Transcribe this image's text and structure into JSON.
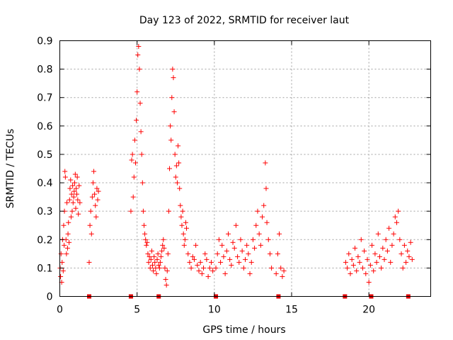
{
  "chart_data": {
    "type": "scatter",
    "title": "Day 123 of 2022, SRMTID for receiver laut",
    "xlabel": "GPS time / hours",
    "ylabel": "SRMTID / TECUs",
    "xlim": [
      0,
      24
    ],
    "ylim": [
      0,
      0.9
    ],
    "xticks": [
      0,
      5,
      10,
      15,
      20
    ],
    "xtick_labels": [
      "0",
      "5",
      "10",
      "15",
      "20"
    ],
    "yticks": [
      0,
      0.1,
      0.2,
      0.3,
      0.4,
      0.5,
      0.6,
      0.7,
      0.8,
      0.9
    ],
    "ytick_labels": [
      "0",
      "0.1",
      "0.2",
      "0.3",
      "0.4",
      "0.5",
      "0.6",
      "0.7",
      "0.8",
      "0.9"
    ],
    "grid": true,
    "series": [
      {
        "name": "SRMTID",
        "color": "#ff0000",
        "marker": "plus",
        "x": [
          0.02,
          0.05,
          0.08,
          0.12,
          0.15,
          0.18,
          0.22,
          0.25,
          0.28,
          0.3,
          0.33,
          0.36,
          0.4,
          0.43,
          0.46,
          0.5,
          0.53,
          0.56,
          0.6,
          0.63,
          0.66,
          0.7,
          0.73,
          0.76,
          0.8,
          0.83,
          0.86,
          0.9,
          0.93,
          0.96,
          1.0,
          1.03,
          1.06,
          1.1,
          1.13,
          1.16,
          1.2,
          1.25,
          1.3,
          1.9,
          1.95,
          2.0,
          2.05,
          2.1,
          2.15,
          2.2,
          2.25,
          2.3,
          2.35,
          2.4,
          2.45,
          2.5,
          4.6,
          4.65,
          4.7,
          4.75,
          4.8,
          4.85,
          4.9,
          4.95,
          5.0,
          5.05,
          5.1,
          5.15,
          5.2,
          5.25,
          5.3,
          5.35,
          5.4,
          5.45,
          5.5,
          5.55,
          5.6,
          5.65,
          5.7,
          5.75,
          5.8,
          5.85,
          5.9,
          5.95,
          6.0,
          6.05,
          6.1,
          6.15,
          6.2,
          6.25,
          6.3,
          6.35,
          6.4,
          6.45,
          6.5,
          6.55,
          6.6,
          6.65,
          6.7,
          6.75,
          6.8,
          6.85,
          6.9,
          6.95,
          7.0,
          7.05,
          7.1,
          7.15,
          7.2,
          7.25,
          7.3,
          7.35,
          7.4,
          7.45,
          7.5,
          7.55,
          7.6,
          7.65,
          7.7,
          7.75,
          7.8,
          7.85,
          7.9,
          7.95,
          8.0,
          8.05,
          8.1,
          8.15,
          8.2,
          8.3,
          8.4,
          8.5,
          8.6,
          8.7,
          8.8,
          8.9,
          9.0,
          9.1,
          9.2,
          9.3,
          9.4,
          9.5,
          9.6,
          9.7,
          9.8,
          9.9,
          10.1,
          10.2,
          10.3,
          10.4,
          10.5,
          10.6,
          10.7,
          10.8,
          10.9,
          11.0,
          11.1,
          11.2,
          11.3,
          11.4,
          11.5,
          11.6,
          11.7,
          11.8,
          11.9,
          12.0,
          12.1,
          12.2,
          12.3,
          12.4,
          12.5,
          12.6,
          12.7,
          12.8,
          12.9,
          13.0,
          13.1,
          13.2,
          13.3,
          13.35,
          13.4,
          13.5,
          13.6,
          13.7,
          14.0,
          14.1,
          14.2,
          14.3,
          14.4,
          14.5,
          18.5,
          18.6,
          18.7,
          18.8,
          18.9,
          19.0,
          19.1,
          19.2,
          19.3,
          19.4,
          19.5,
          19.6,
          19.7,
          19.8,
          19.9,
          20.0,
          20.1,
          20.2,
          20.3,
          20.4,
          20.5,
          20.6,
          20.7,
          20.8,
          20.9,
          21.0,
          21.1,
          21.2,
          21.3,
          21.4,
          21.5,
          21.6,
          21.7,
          21.8,
          21.9,
          22.0,
          22.1,
          22.2,
          22.3,
          22.4,
          22.5,
          22.6,
          22.7,
          22.8
        ],
        "y": [
          0.1,
          0.07,
          0.15,
          0.05,
          0.12,
          0.2,
          0.09,
          0.25,
          0.18,
          0.3,
          0.44,
          0.42,
          0.2,
          0.15,
          0.33,
          0.17,
          0.22,
          0.26,
          0.19,
          0.34,
          0.38,
          0.41,
          0.28,
          0.36,
          0.3,
          0.39,
          0.33,
          0.35,
          0.37,
          0.4,
          0.43,
          0.31,
          0.38,
          0.36,
          0.42,
          0.34,
          0.29,
          0.39,
          0.33,
          0.12,
          0.25,
          0.3,
          0.22,
          0.35,
          0.4,
          0.44,
          0.36,
          0.32,
          0.28,
          0.38,
          0.34,
          0.37,
          0.3,
          0.48,
          0.5,
          0.35,
          0.42,
          0.55,
          0.47,
          0.62,
          0.72,
          0.85,
          0.88,
          0.8,
          0.68,
          0.58,
          0.5,
          0.4,
          0.3,
          0.25,
          0.22,
          0.2,
          0.18,
          0.19,
          0.15,
          0.12,
          0.14,
          0.1,
          0.13,
          0.16,
          0.11,
          0.09,
          0.14,
          0.12,
          0.1,
          0.08,
          0.13,
          0.15,
          0.11,
          0.1,
          0.12,
          0.14,
          0.16,
          0.18,
          0.2,
          0.17,
          0.1,
          0.06,
          0.04,
          0.09,
          0.15,
          0.3,
          0.45,
          0.6,
          0.55,
          0.7,
          0.8,
          0.77,
          0.65,
          0.5,
          0.42,
          0.46,
          0.4,
          0.53,
          0.47,
          0.38,
          0.32,
          0.28,
          0.25,
          0.3,
          0.22,
          0.18,
          0.2,
          0.26,
          0.24,
          0.15,
          0.12,
          0.1,
          0.14,
          0.13,
          0.18,
          0.11,
          0.09,
          0.12,
          0.08,
          0.1,
          0.15,
          0.13,
          0.07,
          0.1,
          0.12,
          0.09,
          0.1,
          0.15,
          0.2,
          0.12,
          0.18,
          0.14,
          0.08,
          0.16,
          0.22,
          0.13,
          0.11,
          0.19,
          0.17,
          0.25,
          0.14,
          0.12,
          0.2,
          0.16,
          0.1,
          0.13,
          0.18,
          0.15,
          0.08,
          0.12,
          0.2,
          0.17,
          0.25,
          0.3,
          0.22,
          0.18,
          0.28,
          0.32,
          0.47,
          0.38,
          0.26,
          0.2,
          0.15,
          0.1,
          0.08,
          0.15,
          0.22,
          0.1,
          0.07,
          0.09,
          0.12,
          0.1,
          0.15,
          0.08,
          0.13,
          0.11,
          0.17,
          0.09,
          0.14,
          0.12,
          0.2,
          0.1,
          0.16,
          0.08,
          0.13,
          0.05,
          0.11,
          0.18,
          0.09,
          0.15,
          0.12,
          0.22,
          0.14,
          0.1,
          0.17,
          0.13,
          0.2,
          0.16,
          0.24,
          0.12,
          0.18,
          0.22,
          0.28,
          0.26,
          0.3,
          0.2,
          0.15,
          0.1,
          0.18,
          0.12,
          0.16,
          0.14,
          0.19,
          0.13
        ]
      }
    ],
    "gap_markers_x": [
      1.9,
      4.6,
      6.4,
      10.1,
      14.15,
      18.45,
      20.15,
      22.55
    ]
  }
}
